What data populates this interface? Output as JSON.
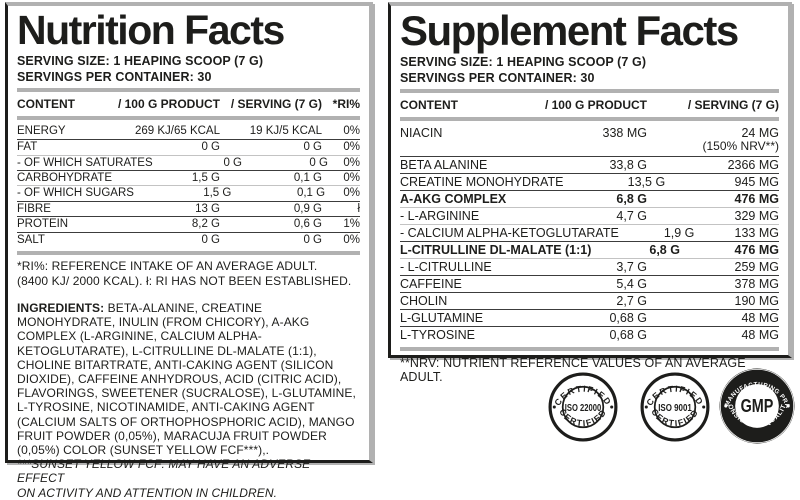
{
  "colors": {
    "ink": "#1d1d1b",
    "bar": "#b1b1b1"
  },
  "left_panel": {
    "title": "Nutrition Facts",
    "serving_size": "SERVING SIZE: 1 HEAPING SCOOP (7 G)",
    "servings_per_container": "SERVINGS PER CONTAINER: 30",
    "header": {
      "content": "CONTENT",
      "per100": "/ 100 G PRODUCT",
      "serving": "/ SERVING (7 G)",
      "ri": "*RI%"
    },
    "rows": [
      {
        "name": "ENERGY",
        "per100": "269 KJ/65 KCAL",
        "serving": "19 KJ/5 KCAL",
        "ri": "0%"
      },
      {
        "name": "FAT",
        "per100": "0 G",
        "serving": "0 G",
        "ri": "0%"
      },
      {
        "name": "- OF WHICH SATURATES",
        "per100": "0 G",
        "serving": "0 G",
        "ri": "0%",
        "sub": true
      },
      {
        "name": "CARBOHYDRATE",
        "per100": "1,5 G",
        "serving": "0,1 G",
        "ri": "0%"
      },
      {
        "name": "- OF WHICH SUGARS",
        "per100": "1,5 G",
        "serving": "0,1 G",
        "ri": "0%",
        "sub": true
      },
      {
        "name": "FIBRE",
        "per100": "13 G",
        "serving": "0,9 G",
        "ri": "ł"
      },
      {
        "name": "PROTEIN",
        "per100": "8,2 G",
        "serving": "0,6 G",
        "ri": "1%"
      },
      {
        "name": "SALT",
        "per100": "0 G",
        "serving": "0 G",
        "ri": "0%"
      }
    ],
    "ri_note_line1": "*RI%: REFERENCE INTAKE OF AN AVERAGE ADULT.",
    "ri_note_line2": "(8400 KJ/ 2000 KCAL). ł: RI HAS NOT BEEN ESTABLISHED.",
    "ingredients_label": "INGREDIENTS:",
    "ingredients_text": " BETA-ALANINE, CREATINE MONOHYDRATE, INULIN (FROM CHICORY), A-AKG COMPLEX (L-ARGININE, CALCIUM ALPHA-KETOGLUTARATE), L-CITRULLINE DL-MALATE (1:1), CHOLINE BITARTRATE, ANTI-CAKING AGENT (SILICON DIOXIDE), CAFFEINE ANHYDROUS, ACID (CITRIC ACID), FLAVORINGS, SWEETENER (SUCRALOSE), L-GLUTAMINE, L-TYROSINE, NICOTINAMIDE, ANTI-CAKING AGENT (CALCIUM SALTS OF ORTHOPHOSPHORIC ACID), MANGO FRUIT POWDER (0,05%), MARACUJA FRUIT POWDER (0,05%) COLOR (SUNSET YELLOW FCF***),.",
    "warning_line1": "***SUNSET YELLOW FCF: MAY HAVE AN ADVERSE EFFECT",
    "warning_line2": "ON ACTIVITY AND ATTENTION IN CHILDREN."
  },
  "right_panel": {
    "title": "Supplement Facts",
    "serving_size": "SERVING SIZE: 1 HEAPING SCOOP (7 G)",
    "servings_per_container": "SERVINGS PER CONTAINER: 30",
    "header": {
      "content": "CONTENT",
      "per100": "/ 100 G PRODUCT",
      "serving": "/ SERVING (7 G)"
    },
    "rows": [
      {
        "name": "NIACIN",
        "per100": "338 MG",
        "serving": "24 MG",
        "serving2": "(150% NRV**)"
      },
      {
        "name": "BETA ALANINE",
        "per100": "33,8 G",
        "serving": "2366 MG"
      },
      {
        "name": "CREATINE MONOHYDRATE",
        "per100": "13,5 G",
        "serving": "945 MG"
      },
      {
        "name": "A-AKG COMPLEX",
        "per100": "6,8 G",
        "serving": "476 MG",
        "bold": true
      },
      {
        "name": "- L-ARGININE",
        "per100": "4,7 G",
        "serving": "329 MG",
        "sub": true
      },
      {
        "name": "- CALCIUM ALPHA-KETOGLUTARATE",
        "per100": "1,9 G",
        "serving": "133 MG",
        "sub": true
      },
      {
        "name": "L-CITRULLINE DL-MALATE (1:1)",
        "per100": "6,8 G",
        "serving": "476 MG",
        "bold": true
      },
      {
        "name": "- L-CITRULLINE",
        "per100": "3,7 G",
        "serving": "259 MG",
        "sub": true
      },
      {
        "name": "CAFFEINE",
        "per100": "5,4 G",
        "serving": "378 MG"
      },
      {
        "name": "CHOLIN",
        "per100": "2,7 G",
        "serving": "190 MG"
      },
      {
        "name": "L-GLUTAMINE",
        "per100": "0,68 G",
        "serving": "48 MG"
      },
      {
        "name": "L-TYROSINE",
        "per100": "0,68 G",
        "serving": "48 MG"
      }
    ],
    "nrv_note": "**NRV: NUTRIENT REFERENCE VALUES OF AN AVERAGE ADULT."
  },
  "badges": [
    {
      "top": "CERTIFIED",
      "center": "ISO 22000",
      "bottom": "CERTIFIED"
    },
    {
      "top": "CERTIFIED",
      "center": "ISO 9001",
      "bottom": "CERTIFIED"
    },
    {
      "top": "GOOD MANUFACTURING PRACTICE",
      "center": "GMP",
      "bottom": "CONSISTENT QUALITY"
    }
  ]
}
